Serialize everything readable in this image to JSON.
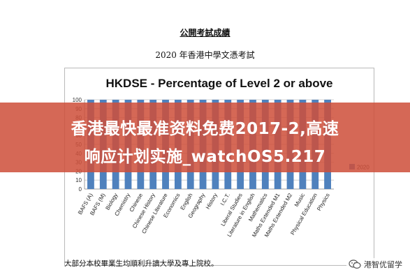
{
  "document": {
    "title": "公開考試成績",
    "subtitle": "2020 年香港中學文憑考試",
    "footer": "大部分本校畢業生均順利升讀大學及專上院校。"
  },
  "overlay": {
    "line1": "香港最快最准资料免费2017-2,高速",
    "line2": "响应计划实施_watchOS5.217",
    "color": "#ce4f3a"
  },
  "watermark": {
    "text": "港智优留学",
    "icon": "wechat-icon"
  },
  "chart_data": {
    "type": "bar",
    "title": "HKDSE - Percentage of Level 2 or above",
    "categories": [
      "BAFS (A)",
      "BAFS (M)",
      "Biology",
      "Chemistry",
      "Chinese",
      "Chinese History",
      "Chinese Literature",
      "Economics",
      "English",
      "Geography",
      "History",
      "I.C.T.",
      "Liberal Studies",
      "Literature in English",
      "Mathematics",
      "Maths Extended M1",
      "Maths Extended M2",
      "Music",
      "Physical Education",
      "Physics"
    ],
    "series": [
      {
        "name": "2020",
        "values": [
          100,
          100,
          100,
          100,
          100,
          100,
          100,
          100,
          100,
          100,
          100,
          100,
          100,
          100,
          100,
          100,
          100,
          100,
          100,
          100
        ],
        "color": "#4f81bd"
      }
    ],
    "ylim": [
      0,
      100
    ],
    "yticks": [
      0,
      10,
      20,
      30,
      40,
      50,
      60,
      70,
      80,
      90,
      100
    ],
    "xlabel": "",
    "ylabel": "",
    "grid": true,
    "legend": "right"
  }
}
